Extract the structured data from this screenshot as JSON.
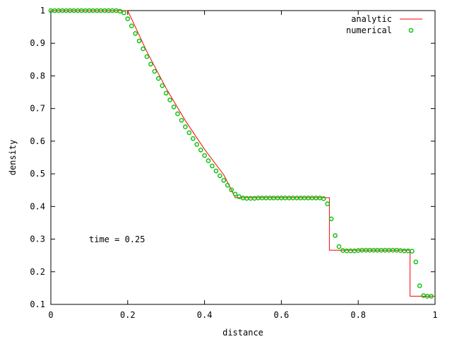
{
  "chart_data": {
    "type": "line",
    "xlabel": "distance",
    "ylabel": "density",
    "xlim": [
      0,
      1
    ],
    "ylim": [
      0.1,
      1
    ],
    "xticks": [
      0,
      0.2,
      0.4,
      0.6,
      0.8,
      1
    ],
    "xtick_labels": [
      "0",
      "0.2",
      "0.4",
      "0.6",
      "0.8",
      "1"
    ],
    "yticks": [
      0.1,
      0.2,
      0.3,
      0.4,
      0.5,
      0.6,
      0.7,
      0.8,
      0.9,
      1
    ],
    "ytick_labels": [
      "0.1",
      "0.2",
      "0.3",
      "0.4",
      "0.5",
      "0.6",
      "0.7",
      "0.8",
      "0.9",
      "1"
    ],
    "grid": false,
    "legend_position": "top-right",
    "annotation": "time = 0.25",
    "colors": {
      "analytic": "#ff0000",
      "numerical": "#00c000"
    },
    "series": [
      {
        "name": "analytic",
        "style": "line",
        "x": [
          0,
          0.2,
          0.25,
          0.3,
          0.35,
          0.4,
          0.45,
          0.48,
          0.5,
          0.6,
          0.7,
          0.725,
          0.725,
          0.8,
          0.9,
          0.935,
          0.935,
          1
        ],
        "y": [
          1,
          1,
          0.874,
          0.762,
          0.663,
          0.575,
          0.497,
          0.427,
          0.427,
          0.427,
          0.427,
          0.427,
          0.266,
          0.266,
          0.266,
          0.266,
          0.125,
          0.125
        ]
      },
      {
        "name": "numerical",
        "style": "points",
        "x": [
          0,
          0.01,
          0.02,
          0.03,
          0.04,
          0.05,
          0.06,
          0.07,
          0.08,
          0.09,
          0.1,
          0.11,
          0.12,
          0.13,
          0.14,
          0.15,
          0.16,
          0.17,
          0.18,
          0.19,
          0.2,
          0.21,
          0.22,
          0.23,
          0.24,
          0.25,
          0.26,
          0.27,
          0.28,
          0.29,
          0.3,
          0.31,
          0.32,
          0.33,
          0.34,
          0.35,
          0.36,
          0.37,
          0.38,
          0.39,
          0.4,
          0.41,
          0.42,
          0.43,
          0.44,
          0.45,
          0.46,
          0.47,
          0.48,
          0.49,
          0.5,
          0.51,
          0.52,
          0.53,
          0.54,
          0.55,
          0.56,
          0.57,
          0.58,
          0.59,
          0.6,
          0.61,
          0.62,
          0.63,
          0.64,
          0.65,
          0.66,
          0.67,
          0.68,
          0.69,
          0.7,
          0.71,
          0.72,
          0.73,
          0.74,
          0.75,
          0.76,
          0.77,
          0.78,
          0.79,
          0.8,
          0.81,
          0.82,
          0.83,
          0.84,
          0.85,
          0.86,
          0.87,
          0.88,
          0.89,
          0.9,
          0.91,
          0.92,
          0.93,
          0.94,
          0.95,
          0.96,
          0.97,
          0.98,
          0.99
        ],
        "y": [
          1,
          1,
          1,
          1,
          1,
          1,
          1,
          1,
          1,
          1,
          1,
          1,
          1,
          1,
          1,
          1,
          1,
          1,
          0.998,
          0.993,
          0.975,
          0.953,
          0.93,
          0.907,
          0.883,
          0.859,
          0.836,
          0.814,
          0.792,
          0.77,
          0.747,
          0.726,
          0.705,
          0.684,
          0.664,
          0.644,
          0.626,
          0.608,
          0.59,
          0.573,
          0.556,
          0.54,
          0.524,
          0.509,
          0.494,
          0.48,
          0.465,
          0.451,
          0.438,
          0.43,
          0.426,
          0.425,
          0.425,
          0.425,
          0.426,
          0.426,
          0.426,
          0.426,
          0.426,
          0.426,
          0.426,
          0.426,
          0.426,
          0.426,
          0.426,
          0.426,
          0.426,
          0.426,
          0.426,
          0.426,
          0.426,
          0.424,
          0.408,
          0.362,
          0.311,
          0.277,
          0.265,
          0.264,
          0.264,
          0.264,
          0.265,
          0.266,
          0.266,
          0.266,
          0.266,
          0.266,
          0.266,
          0.266,
          0.266,
          0.266,
          0.266,
          0.265,
          0.264,
          0.264,
          0.263,
          0.23,
          0.157,
          0.127,
          0.125,
          0.125
        ]
      }
    ]
  }
}
